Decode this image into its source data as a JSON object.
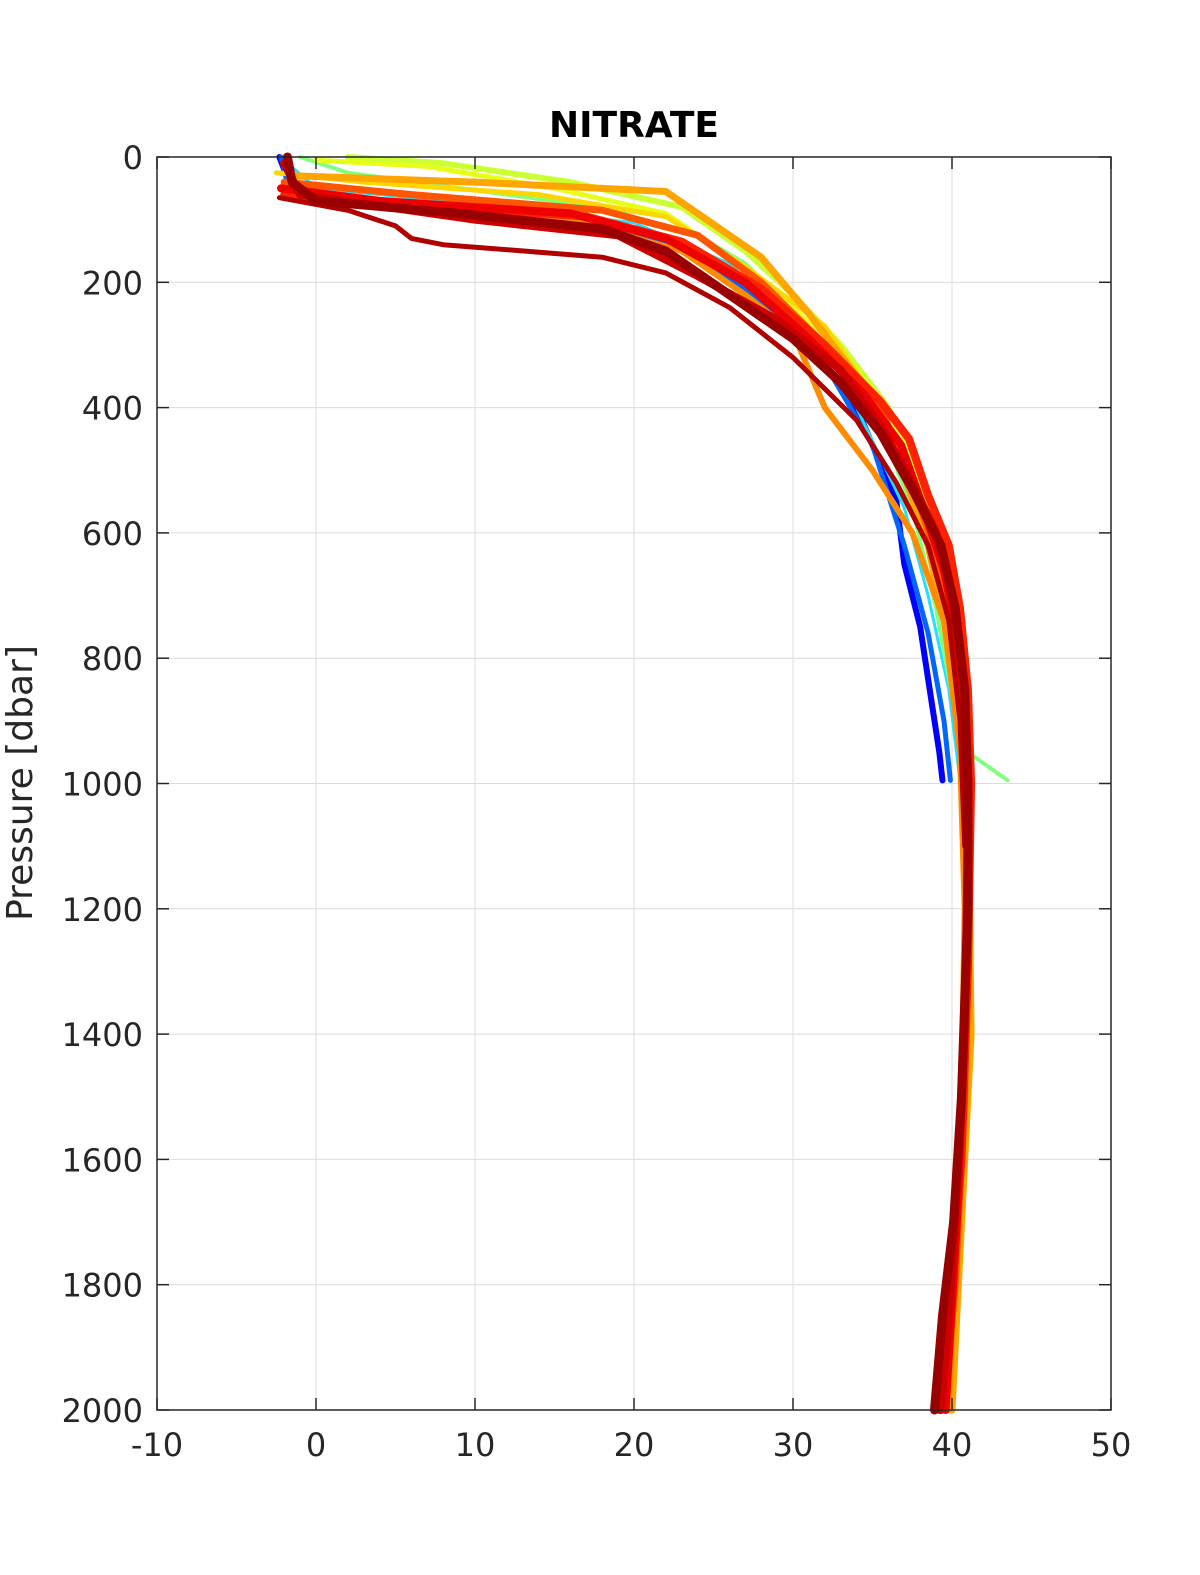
{
  "chart_data": {
    "type": "line",
    "title": "NITRATE",
    "xlabel": "",
    "ylabel": "Pressure [dbar]",
    "xlim": [
      -10,
      50
    ],
    "ylim": [
      0,
      2000
    ],
    "y_reversed": true,
    "grid": true,
    "legend": "none",
    "x_ticks": [
      "-10",
      "0",
      "10",
      "20",
      "30",
      "40",
      "50"
    ],
    "y_ticks": [
      "0",
      "200",
      "400",
      "600",
      "800",
      "1000",
      "1200",
      "1400",
      "1600",
      "1800",
      "2000"
    ],
    "series": [
      {
        "color": "#0000ff",
        "width": 6,
        "points": [
          [
            -2.3,
            0
          ],
          [
            -2.0,
            20
          ],
          [
            -1.5,
            60
          ],
          [
            5,
            80
          ],
          [
            15,
            100
          ],
          [
            22,
            130
          ],
          [
            27,
            200
          ],
          [
            31,
            300
          ],
          [
            34,
            400
          ],
          [
            36.5,
            550
          ],
          [
            37,
            650
          ],
          [
            38,
            750
          ],
          [
            38.6,
            850
          ],
          [
            39.2,
            950
          ],
          [
            39.4,
            995
          ]
        ]
      },
      {
        "color": "#0066ff",
        "width": 5,
        "points": [
          [
            -2.2,
            0
          ],
          [
            -1.8,
            40
          ],
          [
            3,
            70
          ],
          [
            15,
            95
          ],
          [
            23,
            140
          ],
          [
            28,
            230
          ],
          [
            32,
            330
          ],
          [
            35,
            460
          ],
          [
            37,
            620
          ],
          [
            38.5,
            760
          ],
          [
            39.5,
            900
          ],
          [
            39.9,
            995
          ]
        ]
      },
      {
        "color": "#22e0ff",
        "width": 3,
        "points": [
          [
            -2.0,
            5
          ],
          [
            0,
            50
          ],
          [
            10,
            75
          ],
          [
            20,
            105
          ],
          [
            26,
            170
          ],
          [
            30,
            270
          ],
          [
            34,
            400
          ],
          [
            37,
            560
          ],
          [
            38.5,
            700
          ],
          [
            39.8,
            850
          ],
          [
            40.5,
            995
          ]
        ]
      },
      {
        "color": "#80ff80",
        "width": 4,
        "points": [
          [
            -1.0,
            0
          ],
          [
            2,
            25
          ],
          [
            12,
            60
          ],
          [
            22,
            95
          ],
          [
            27,
            170
          ],
          [
            31,
            270
          ],
          [
            35,
            400
          ],
          [
            37.5,
            560
          ],
          [
            39,
            720
          ],
          [
            40,
            860
          ],
          [
            41,
            950
          ],
          [
            43.5,
            995
          ]
        ]
      },
      {
        "color": "#ccff33",
        "width": 6,
        "points": [
          [
            2,
            0
          ],
          [
            8,
            10
          ],
          [
            16,
            40
          ],
          [
            23,
            80
          ],
          [
            27,
            150
          ],
          [
            30,
            220
          ],
          [
            33,
            300
          ],
          [
            36,
            400
          ],
          [
            38,
            520
          ],
          [
            39.5,
            650
          ],
          [
            40.5,
            820
          ],
          [
            40.6,
            1000
          ]
        ]
      },
      {
        "color": "#e6ff1a",
        "width": 5,
        "points": [
          [
            0,
            5
          ],
          [
            7,
            15
          ],
          [
            15,
            50
          ],
          [
            22,
            90
          ],
          [
            26,
            160
          ],
          [
            30,
            240
          ],
          [
            34,
            340
          ],
          [
            37,
            460
          ],
          [
            39,
            600
          ],
          [
            40.5,
            780
          ],
          [
            41,
            1000
          ]
        ]
      },
      {
        "color": "#ffd700",
        "width": 5,
        "points": [
          [
            -2.5,
            25
          ],
          [
            3,
            40
          ],
          [
            14,
            60
          ],
          [
            22,
            95
          ],
          [
            27,
            175
          ],
          [
            32,
            270
          ],
          [
            35,
            380
          ],
          [
            38,
            540
          ],
          [
            39.8,
            700
          ],
          [
            41,
            900
          ],
          [
            41,
            1200
          ],
          [
            40.9,
            1500
          ],
          [
            40.4,
            1800
          ],
          [
            39.9,
            2000
          ]
        ]
      },
      {
        "color": "#ffa500",
        "width": 7,
        "points": [
          [
            -1.5,
            30
          ],
          [
            10,
            40
          ],
          [
            22,
            55
          ],
          [
            24,
            90
          ],
          [
            28,
            160
          ],
          [
            31,
            250
          ],
          [
            34,
            350
          ],
          [
            36.5,
            470
          ],
          [
            38.5,
            620
          ],
          [
            40,
            800
          ],
          [
            41,
            1000
          ],
          [
            41.2,
            1400
          ],
          [
            40.6,
            1700
          ],
          [
            40,
            2000
          ]
        ]
      },
      {
        "color": "#ff8c00",
        "width": 6,
        "points": [
          [
            -1.8,
            60
          ],
          [
            4,
            80
          ],
          [
            16,
            100
          ],
          [
            23,
            150
          ],
          [
            27,
            220
          ],
          [
            30,
            280
          ],
          [
            32,
            400
          ],
          [
            35,
            500
          ],
          [
            37.5,
            600
          ],
          [
            39.5,
            740
          ],
          [
            40.5,
            950
          ],
          [
            40.8,
            1200
          ],
          [
            40.6,
            1500
          ],
          [
            40.2,
            1750
          ],
          [
            39.8,
            2000
          ]
        ]
      },
      {
        "color": "#ff5500",
        "width": 7,
        "points": [
          [
            -2,
            40
          ],
          [
            6,
            60
          ],
          [
            18,
            85
          ],
          [
            24,
            125
          ],
          [
            28,
            200
          ],
          [
            32,
            300
          ],
          [
            35.5,
            400
          ],
          [
            37.5,
            520
          ],
          [
            39.2,
            650
          ],
          [
            40.3,
            800
          ],
          [
            40.8,
            950
          ],
          [
            41,
            1200
          ],
          [
            40.8,
            1500
          ],
          [
            40.2,
            1800
          ],
          [
            39.5,
            2000
          ]
        ]
      },
      {
        "color": "#ff2200",
        "width": 8,
        "points": [
          [
            -2,
            60
          ],
          [
            5,
            75
          ],
          [
            17,
            95
          ],
          [
            23,
            135
          ],
          [
            28,
            210
          ],
          [
            32,
            300
          ],
          [
            35.5,
            390
          ],
          [
            37.3,
            450
          ],
          [
            38.5,
            540
          ],
          [
            39.8,
            620
          ],
          [
            40.5,
            720
          ],
          [
            41,
            850
          ],
          [
            41.2,
            1000
          ],
          [
            41,
            1300
          ],
          [
            40.6,
            1600
          ],
          [
            39.8,
            1850
          ],
          [
            39.2,
            2000
          ]
        ]
      },
      {
        "color": "#ee0000",
        "width": 8,
        "points": [
          [
            -2.2,
            50
          ],
          [
            4,
            70
          ],
          [
            16,
            90
          ],
          [
            22,
            130
          ],
          [
            27,
            200
          ],
          [
            31,
            290
          ],
          [
            34.5,
            380
          ],
          [
            36.8,
            460
          ],
          [
            38.2,
            560
          ],
          [
            39.5,
            660
          ],
          [
            40.3,
            760
          ],
          [
            40.8,
            900
          ],
          [
            41,
            1100
          ],
          [
            40.8,
            1400
          ],
          [
            40.3,
            1700
          ],
          [
            39.6,
            2000
          ]
        ]
      },
      {
        "color": "#cc0000",
        "width": 8,
        "points": [
          [
            -2,
            10
          ],
          [
            -1,
            60
          ],
          [
            10,
            100
          ],
          [
            19,
            125
          ],
          [
            24,
            190
          ],
          [
            29,
            260
          ],
          [
            33,
            340
          ],
          [
            35.5,
            430
          ],
          [
            37.5,
            520
          ],
          [
            39,
            600
          ],
          [
            40,
            700
          ],
          [
            40.8,
            850
          ],
          [
            41,
            1000
          ],
          [
            40.9,
            1300
          ],
          [
            40.4,
            1600
          ],
          [
            39.8,
            1850
          ],
          [
            39.3,
            2000
          ]
        ]
      },
      {
        "color": "#b00000",
        "width": 5,
        "points": [
          [
            -2.3,
            65
          ],
          [
            2,
            85
          ],
          [
            5,
            110
          ],
          [
            6,
            130
          ],
          [
            8,
            140
          ],
          [
            18,
            160
          ],
          [
            22,
            185
          ],
          [
            26,
            240
          ],
          [
            30,
            320
          ],
          [
            34,
            420
          ],
          [
            36.5,
            520
          ],
          [
            38.5,
            620
          ],
          [
            39.8,
            740
          ],
          [
            40.5,
            900
          ],
          [
            40.8,
            1100
          ]
        ]
      },
      {
        "color": "#990000",
        "width": 9,
        "points": [
          [
            -1.8,
            0
          ],
          [
            -1.5,
            40
          ],
          [
            0,
            70
          ],
          [
            9,
            90
          ],
          [
            18,
            115
          ],
          [
            22,
            150
          ],
          [
            26,
            220
          ],
          [
            30,
            290
          ],
          [
            33,
            360
          ],
          [
            35.5,
            440
          ],
          [
            37.5,
            530
          ],
          [
            39.3,
            620
          ],
          [
            40.2,
            720
          ],
          [
            40.8,
            850
          ],
          [
            41,
            1000
          ],
          [
            41,
            1200
          ],
          [
            40.6,
            1500
          ],
          [
            40.1,
            1700
          ],
          [
            39.4,
            1850
          ],
          [
            38.9,
            2000
          ]
        ]
      }
    ]
  }
}
